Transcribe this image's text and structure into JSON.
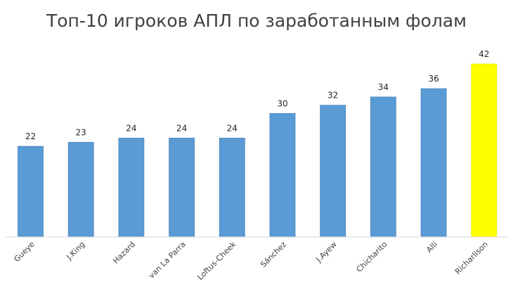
{
  "chart_data": {
    "type": "bar",
    "title": "Топ-10 игроков АПЛ по заработанным фолам",
    "xlabel": "",
    "ylabel": "",
    "categories": [
      "Gueye",
      "J.King",
      "Hazard",
      "van La Parra",
      "Loftus-Cheek",
      "Sánchez",
      "J.Ayew",
      "Chicharito",
      "Alli",
      "Richarlison"
    ],
    "values": [
      22,
      23,
      24,
      24,
      24,
      30,
      32,
      34,
      36,
      42
    ],
    "ylim": [
      0,
      42
    ],
    "grid": false,
    "legend": "none",
    "data_labels": true,
    "colors": {
      "default_bar": "#5b9bd5",
      "highlight_bar": "#ffff00",
      "axis": "#d9d9d9"
    },
    "highlight_index": 9
  }
}
